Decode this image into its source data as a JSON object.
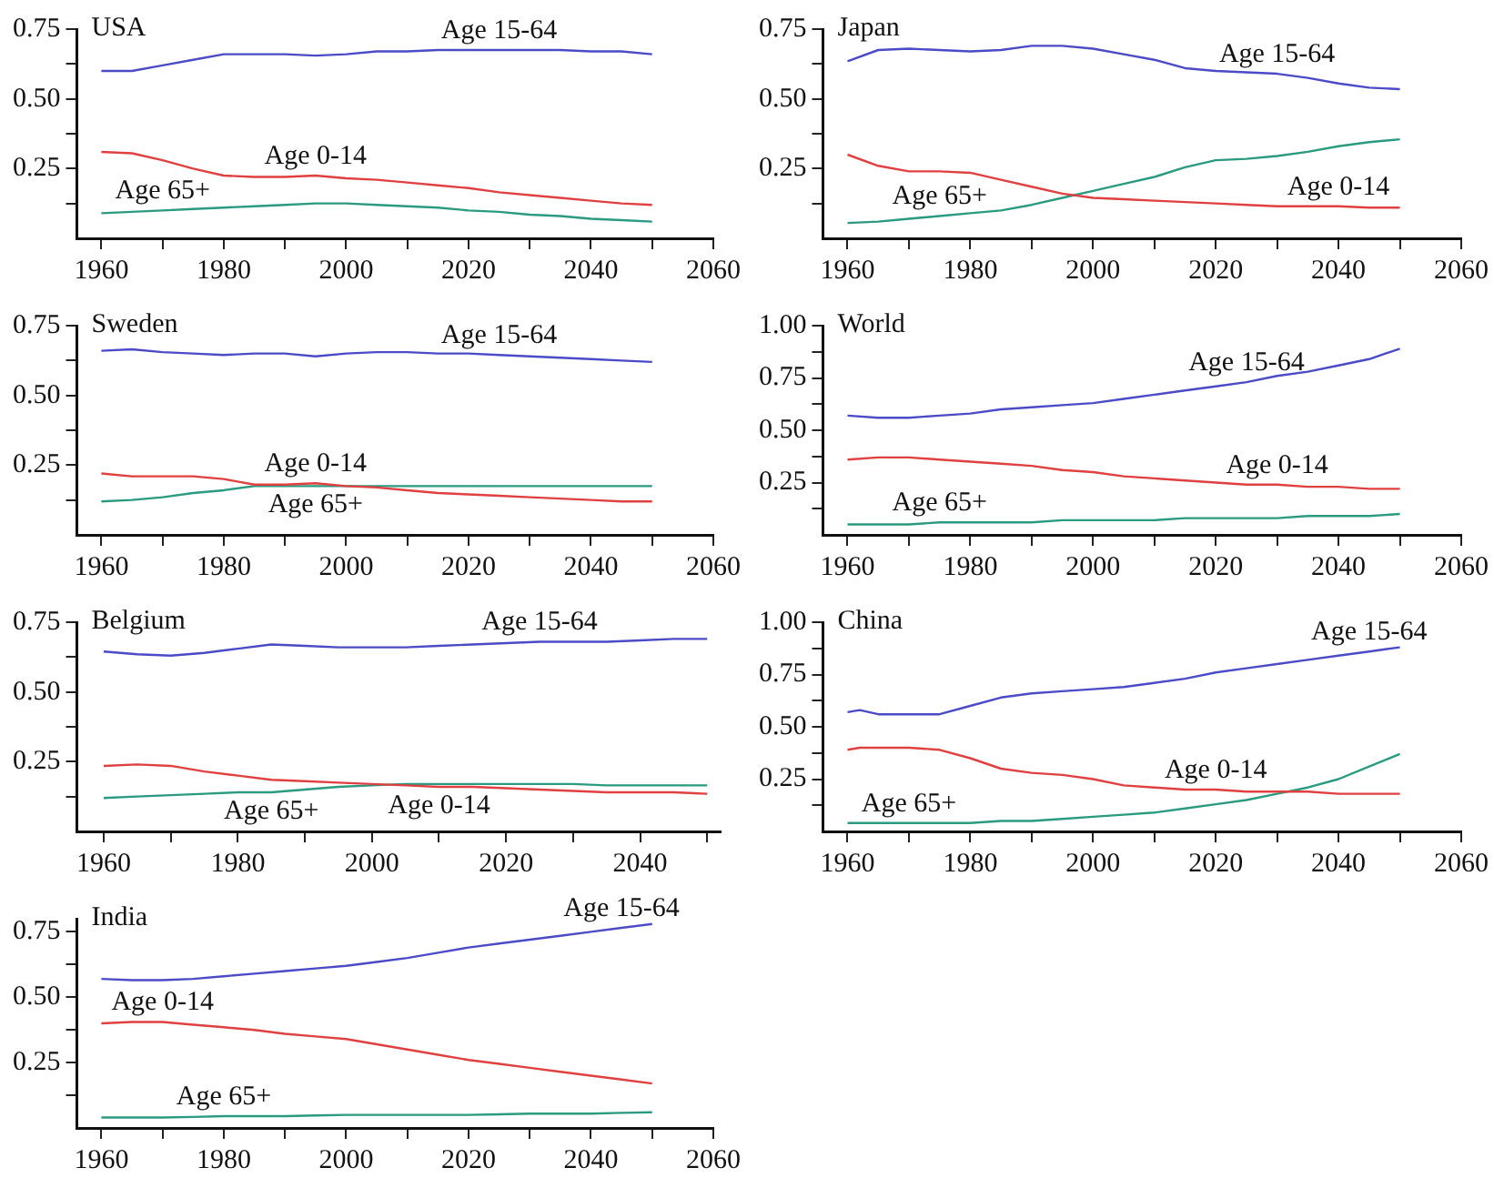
{
  "chart_data": [
    {
      "type": "line",
      "title": "USA",
      "xlim": [
        1956,
        2060
      ],
      "ylim": [
        0,
        0.75
      ],
      "xticks": [
        1960,
        {
          "value": 1970,
          "label": null
        },
        1980,
        {
          "value": 1990,
          "label": null
        },
        2000,
        {
          "value": 2010,
          "label": null
        },
        2020,
        {
          "value": 2030,
          "label": null
        },
        2040,
        {
          "value": 2050,
          "label": null
        },
        2060
      ],
      "yticks": [
        {
          "value": 0.125,
          "label": null
        },
        {
          "value": 0.25,
          "label": "0.25"
        },
        {
          "value": 0.375,
          "label": null
        },
        {
          "value": 0.5,
          "label": "0.50"
        },
        {
          "value": 0.625,
          "label": null
        },
        {
          "value": 0.75,
          "label": "0.75"
        }
      ],
      "legend": false,
      "grid": false,
      "x": [
        1960,
        1965,
        1970,
        1975,
        1980,
        1985,
        1990,
        1995,
        2000,
        2005,
        2010,
        2015,
        2020,
        2025,
        2030,
        2035,
        2040,
        2045,
        2050
      ],
      "series": [
        {
          "name": "Age 15-64",
          "color": "#4b4bc8",
          "values": [
            0.6,
            0.6,
            0.62,
            0.64,
            0.66,
            0.66,
            0.66,
            0.655,
            0.66,
            0.67,
            0.67,
            0.675,
            0.675,
            0.675,
            0.675,
            0.675,
            0.67,
            0.67,
            0.66
          ]
        },
        {
          "name": "Age 0-14",
          "color": "#e04040",
          "values": [
            0.31,
            0.305,
            0.28,
            0.25,
            0.225,
            0.22,
            0.22,
            0.225,
            0.215,
            0.21,
            0.2,
            0.19,
            0.18,
            0.165,
            0.155,
            0.145,
            0.135,
            0.125,
            0.12
          ]
        },
        {
          "name": "Age 65+",
          "color": "#2a9a80",
          "values": [
            0.09,
            0.095,
            0.1,
            0.105,
            0.11,
            0.115,
            0.12,
            0.125,
            0.125,
            0.12,
            0.115,
            0.11,
            0.1,
            0.095,
            0.085,
            0.08,
            0.07,
            0.065,
            0.06
          ]
        }
      ]
    },
    {
      "type": "line",
      "title": "Japan",
      "xlim": [
        1956,
        2060
      ],
      "ylim": [
        0,
        0.75
      ],
      "xticks": [
        1960,
        {
          "value": 1970,
          "label": null
        },
        1980,
        {
          "value": 1990,
          "label": null
        },
        2000,
        {
          "value": 2010,
          "label": null
        },
        2020,
        {
          "value": 2030,
          "label": null
        },
        2040,
        {
          "value": 2050,
          "label": null
        },
        2060
      ],
      "yticks": [
        {
          "value": 0.125,
          "label": null
        },
        {
          "value": 0.25,
          "label": "0.25"
        },
        {
          "value": 0.375,
          "label": null
        },
        {
          "value": 0.5,
          "label": "0.50"
        },
        {
          "value": 0.625,
          "label": null
        },
        {
          "value": 0.75,
          "label": "0.75"
        }
      ],
      "legend": false,
      "grid": false,
      "x": [
        1960,
        1965,
        1970,
        1975,
        1980,
        1985,
        1990,
        1995,
        2000,
        2005,
        2010,
        2015,
        2020,
        2025,
        2030,
        2035,
        2040,
        2045,
        2050
      ],
      "series": [
        {
          "name": "Age 15-64",
          "color": "#4b4bc8",
          "values": [
            0.635,
            0.675,
            0.68,
            0.675,
            0.67,
            0.675,
            0.69,
            0.69,
            0.68,
            0.66,
            0.64,
            0.61,
            0.6,
            0.595,
            0.59,
            0.575,
            0.555,
            0.54,
            0.535
          ]
        },
        {
          "name": "Age 0-14",
          "color": "#e04040",
          "values": [
            0.3,
            0.26,
            0.24,
            0.24,
            0.235,
            0.21,
            0.185,
            0.16,
            0.145,
            0.14,
            0.135,
            0.13,
            0.125,
            0.12,
            0.115,
            0.115,
            0.115,
            0.11,
            0.11
          ]
        },
        {
          "name": "Age 65+",
          "color": "#2a9a80",
          "values": [
            0.055,
            0.06,
            0.07,
            0.08,
            0.09,
            0.1,
            0.12,
            0.145,
            0.17,
            0.195,
            0.22,
            0.255,
            0.28,
            0.285,
            0.295,
            0.31,
            0.33,
            0.345,
            0.355
          ]
        }
      ]
    },
    {
      "type": "line",
      "title": "Sweden",
      "xlim": [
        1956,
        2060
      ],
      "ylim": [
        0,
        0.75
      ],
      "xticks": [
        1960,
        {
          "value": 1970,
          "label": null
        },
        1980,
        {
          "value": 1990,
          "label": null
        },
        2000,
        {
          "value": 2010,
          "label": null
        },
        2020,
        {
          "value": 2030,
          "label": null
        },
        2040,
        {
          "value": 2050,
          "label": null
        },
        2060
      ],
      "yticks": [
        {
          "value": 0.125,
          "label": null
        },
        {
          "value": 0.25,
          "label": "0.25"
        },
        {
          "value": 0.375,
          "label": null
        },
        {
          "value": 0.5,
          "label": "0.50"
        },
        {
          "value": 0.625,
          "label": null
        },
        {
          "value": 0.75,
          "label": "0.75"
        }
      ],
      "legend": false,
      "grid": false,
      "x": [
        1960,
        1965,
        1970,
        1975,
        1980,
        1985,
        1990,
        1995,
        2000,
        2005,
        2010,
        2015,
        2020,
        2025,
        2030,
        2035,
        2040,
        2045,
        2050
      ],
      "series": [
        {
          "name": "Age 15-64",
          "color": "#4b4bc8",
          "values": [
            0.66,
            0.665,
            0.655,
            0.65,
            0.645,
            0.65,
            0.65,
            0.64,
            0.65,
            0.655,
            0.655,
            0.65,
            0.65,
            0.645,
            0.64,
            0.635,
            0.63,
            0.625,
            0.62
          ]
        },
        {
          "name": "Age 0-14",
          "color": "#e04040",
          "values": [
            0.22,
            0.21,
            0.21,
            0.21,
            0.2,
            0.18,
            0.18,
            0.185,
            0.175,
            0.17,
            0.16,
            0.15,
            0.145,
            0.14,
            0.135,
            0.13,
            0.125,
            0.12,
            0.12
          ]
        },
        {
          "name": "Age 65+",
          "color": "#2a9a80",
          "values": [
            0.12,
            0.125,
            0.135,
            0.15,
            0.16,
            0.175,
            0.175,
            0.175,
            0.175,
            0.175,
            0.175,
            0.175,
            0.175,
            0.175,
            0.175,
            0.175,
            0.175,
            0.175,
            0.175
          ]
        }
      ]
    },
    {
      "type": "line",
      "title": "World",
      "xlim": [
        1956,
        2060
      ],
      "ylim": [
        0,
        1
      ],
      "xticks": [
        1960,
        {
          "value": 1970,
          "label": null
        },
        1980,
        {
          "value": 1990,
          "label": null
        },
        2000,
        {
          "value": 2010,
          "label": null
        },
        2020,
        {
          "value": 2030,
          "label": null
        },
        2040,
        {
          "value": 2050,
          "label": null
        },
        2060
      ],
      "yticks": [
        {
          "value": 0.125,
          "label": null
        },
        {
          "value": 0.25,
          "label": "0.25"
        },
        {
          "value": 0.375,
          "label": null
        },
        {
          "value": 0.5,
          "label": "0.50"
        },
        {
          "value": 0.625,
          "label": null
        },
        {
          "value": 0.75,
          "label": "0.75"
        },
        {
          "value": 0.875,
          "label": null
        },
        {
          "value": 1,
          "label": "1.00"
        }
      ],
      "legend": false,
      "grid": false,
      "x": [
        1960,
        1965,
        1970,
        1975,
        1980,
        1985,
        1990,
        1995,
        2000,
        2005,
        2010,
        2015,
        2020,
        2025,
        2030,
        2035,
        2040,
        2045,
        2050
      ],
      "series": [
        {
          "name": "Age 15-64",
          "color": "#4b4bc8",
          "values": [
            0.57,
            0.56,
            0.56,
            0.57,
            0.58,
            0.6,
            0.61,
            0.62,
            0.63,
            0.65,
            0.67,
            0.69,
            0.71,
            0.73,
            0.76,
            0.78,
            0.81,
            0.84,
            0.89
          ]
        },
        {
          "name": "Age 0-14",
          "color": "#e04040",
          "values": [
            0.36,
            0.37,
            0.37,
            0.36,
            0.35,
            0.34,
            0.33,
            0.31,
            0.3,
            0.28,
            0.27,
            0.26,
            0.25,
            0.24,
            0.24,
            0.23,
            0.23,
            0.22,
            0.22
          ]
        },
        {
          "name": "Age 65+",
          "color": "#2a9a80",
          "values": [
            0.05,
            0.05,
            0.05,
            0.06,
            0.06,
            0.06,
            0.06,
            0.07,
            0.07,
            0.07,
            0.07,
            0.08,
            0.08,
            0.08,
            0.08,
            0.09,
            0.09,
            0.09,
            0.1
          ]
        }
      ]
    },
    {
      "type": "line",
      "title": "Belgium",
      "xlim": [
        1956,
        2052
      ],
      "ylim": [
        0,
        0.75
      ],
      "xticks": [
        1960,
        {
          "value": 1970,
          "label": null
        },
        1980,
        {
          "value": 1990,
          "label": null
        },
        2000,
        {
          "value": 2010,
          "label": null
        },
        2020,
        {
          "value": 2030,
          "label": null
        },
        2040,
        {
          "value": 2050,
          "label": null
        }
      ],
      "yticks": [
        {
          "value": 0.125,
          "label": null
        },
        {
          "value": 0.25,
          "label": "0.25"
        },
        {
          "value": 0.375,
          "label": null
        },
        {
          "value": 0.5,
          "label": "0.50"
        },
        {
          "value": 0.625,
          "label": null
        },
        {
          "value": 0.75,
          "label": "0.75"
        }
      ],
      "legend": false,
      "grid": false,
      "x": [
        1960,
        1965,
        1970,
        1975,
        1980,
        1985,
        1990,
        1995,
        2000,
        2005,
        2010,
        2015,
        2020,
        2025,
        2030,
        2035,
        2040,
        2045,
        2050
      ],
      "series": [
        {
          "name": "Age 15-64",
          "color": "#4b4bc8",
          "values": [
            0.645,
            0.635,
            0.63,
            0.64,
            0.655,
            0.67,
            0.665,
            0.66,
            0.66,
            0.66,
            0.665,
            0.67,
            0.675,
            0.68,
            0.68,
            0.68,
            0.685,
            0.69,
            0.69
          ]
        },
        {
          "name": "Age 0-14",
          "color": "#e04040",
          "values": [
            0.235,
            0.24,
            0.235,
            0.215,
            0.2,
            0.185,
            0.18,
            0.175,
            0.17,
            0.165,
            0.16,
            0.16,
            0.155,
            0.15,
            0.145,
            0.14,
            0.14,
            0.14,
            0.135
          ]
        },
        {
          "name": "Age 65+",
          "color": "#2a9a80",
          "values": [
            0.12,
            0.125,
            0.13,
            0.135,
            0.14,
            0.14,
            0.15,
            0.16,
            0.165,
            0.17,
            0.17,
            0.17,
            0.17,
            0.17,
            0.17,
            0.165,
            0.165,
            0.165,
            0.165
          ]
        }
      ]
    },
    {
      "type": "line",
      "title": "China",
      "xlim": [
        1956,
        2060
      ],
      "ylim": [
        0,
        1
      ],
      "xticks": [
        1960,
        {
          "value": 1970,
          "label": null
        },
        1980,
        {
          "value": 1990,
          "label": null
        },
        2000,
        {
          "value": 2010,
          "label": null
        },
        2020,
        {
          "value": 2030,
          "label": null
        },
        2040,
        {
          "value": 2050,
          "label": null
        },
        2060
      ],
      "yticks": [
        {
          "value": 0.125,
          "label": null
        },
        {
          "value": 0.25,
          "label": "0.25"
        },
        {
          "value": 0.375,
          "label": null
        },
        {
          "value": 0.5,
          "label": "0.50"
        },
        {
          "value": 0.625,
          "label": null
        },
        {
          "value": 0.75,
          "label": "0.75"
        },
        {
          "value": 0.875,
          "label": null
        },
        {
          "value": 1,
          "label": "1.00"
        }
      ],
      "legend": false,
      "grid": false,
      "x": [
        1960,
        1962,
        1965,
        1970,
        1975,
        1980,
        1985,
        1990,
        1995,
        2000,
        2005,
        2010,
        2015,
        2020,
        2025,
        2030,
        2035,
        2040,
        2045,
        2050
      ],
      "series": [
        {
          "name": "Age 15-64",
          "color": "#4b4bc8",
          "values": [
            0.57,
            0.58,
            0.56,
            0.56,
            0.56,
            0.6,
            0.64,
            0.66,
            0.67,
            0.68,
            0.69,
            0.71,
            0.73,
            0.76,
            0.78,
            0.8,
            0.82,
            0.84,
            0.86,
            0.88
          ]
        },
        {
          "name": "Age 0-14",
          "color": "#e04040",
          "values": [
            0.39,
            0.4,
            0.4,
            0.4,
            0.39,
            0.35,
            0.3,
            0.28,
            0.27,
            0.25,
            0.22,
            0.21,
            0.2,
            0.2,
            0.19,
            0.19,
            0.19,
            0.18,
            0.18,
            0.18
          ]
        },
        {
          "name": "Age 65+",
          "color": "#2a9a80",
          "values": [
            0.04,
            0.04,
            0.04,
            0.04,
            0.04,
            0.04,
            0.05,
            0.05,
            0.06,
            0.07,
            0.08,
            0.09,
            0.11,
            0.13,
            0.15,
            0.18,
            0.21,
            0.25,
            0.31,
            0.37
          ]
        }
      ]
    },
    {
      "type": "line",
      "title": "India",
      "xlim": [
        1956,
        2060
      ],
      "ylim": [
        0,
        0.8
      ],
      "xticks": [
        1960,
        {
          "value": 1970,
          "label": null
        },
        1980,
        {
          "value": 1990,
          "label": null
        },
        2000,
        {
          "value": 2010,
          "label": null
        },
        2020,
        {
          "value": 2030,
          "label": null
        },
        2040,
        {
          "value": 2050,
          "label": null
        },
        2060
      ],
      "yticks": [
        {
          "value": 0.125,
          "label": null
        },
        {
          "value": 0.25,
          "label": "0.25"
        },
        {
          "value": 0.375,
          "label": null
        },
        {
          "value": 0.5,
          "label": "0.50"
        },
        {
          "value": 0.625,
          "label": null
        },
        {
          "value": 0.75,
          "label": "0.75"
        }
      ],
      "legend": false,
      "grid": false,
      "x": [
        1960,
        1965,
        1970,
        1975,
        1980,
        1985,
        1990,
        1995,
        2000,
        2005,
        2010,
        2015,
        2020,
        2025,
        2030,
        2035,
        2040,
        2045,
        2050
      ],
      "series": [
        {
          "name": "Age 15-64",
          "color": "#4b4bc8",
          "values": [
            0.57,
            0.565,
            0.565,
            0.57,
            0.58,
            0.59,
            0.6,
            0.61,
            0.62,
            0.635,
            0.65,
            0.67,
            0.69,
            0.705,
            0.72,
            0.735,
            0.75,
            0.765,
            0.78
          ]
        },
        {
          "name": "Age 0-14",
          "color": "#e04040",
          "values": [
            0.4,
            0.405,
            0.405,
            0.395,
            0.385,
            0.375,
            0.36,
            0.35,
            0.34,
            0.32,
            0.3,
            0.28,
            0.26,
            0.245,
            0.23,
            0.215,
            0.2,
            0.185,
            0.17
          ]
        },
        {
          "name": "Age 65+",
          "color": "#2a9a80",
          "values": [
            0.04,
            0.04,
            0.04,
            0.042,
            0.045,
            0.045,
            0.045,
            0.048,
            0.05,
            0.05,
            0.05,
            0.05,
            0.05,
            0.052,
            0.055,
            0.055,
            0.055,
            0.058,
            0.06
          ]
        }
      ]
    }
  ]
}
